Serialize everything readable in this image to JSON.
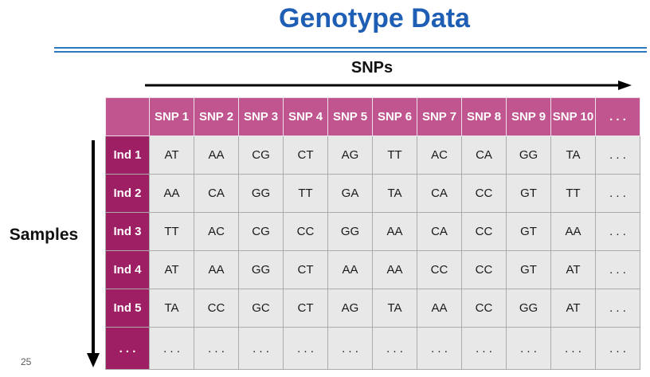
{
  "slide": {
    "title": "Genotype Data",
    "snps_axis_label": "SNPs",
    "samples_axis_label": "Samples",
    "page_number": "25"
  },
  "colors": {
    "title_blue": "#1E5EB4",
    "rule_blue": "#2E79BE",
    "header_pink": "#C0558F",
    "row_header_magenta": "#9E1F63",
    "cell_gray": "#E9E8E9",
    "arrow_black": "#000000"
  },
  "table": {
    "corner_label": "",
    "column_headers": [
      "SNP 1",
      "SNP 2",
      "SNP 3",
      "SNP 4",
      "SNP 5",
      "SNP 6",
      "SNP 7",
      "SNP 8",
      "SNP 9",
      "SNP 10",
      ". . ."
    ],
    "rows": [
      {
        "label": "Ind 1",
        "cells": [
          "AT",
          "AA",
          "CG",
          "CT",
          "AG",
          "TT",
          "AC",
          "CA",
          "GG",
          "TA",
          ". . ."
        ]
      },
      {
        "label": "Ind 2",
        "cells": [
          "AA",
          "CA",
          "GG",
          "TT",
          "GA",
          "TA",
          "CA",
          "CC",
          "GT",
          "TT",
          ". . ."
        ]
      },
      {
        "label": "Ind 3",
        "cells": [
          "TT",
          "AC",
          "CG",
          "CC",
          "GG",
          "AA",
          "CA",
          "CC",
          "GT",
          "AA",
          ". . ."
        ]
      },
      {
        "label": "Ind 4",
        "cells": [
          "AT",
          "AA",
          "GG",
          "CT",
          "AA",
          "AA",
          "CC",
          "CC",
          "GT",
          "AT",
          ". . ."
        ]
      },
      {
        "label": "Ind 5",
        "cells": [
          "TA",
          "CC",
          "GC",
          "CT",
          "AG",
          "TA",
          "AA",
          "CC",
          "GG",
          "AT",
          ". . ."
        ]
      },
      {
        "label": ". . .",
        "cells": [
          ". . .",
          ". . .",
          ". . .",
          ". . .",
          ". . .",
          ". . .",
          ". . .",
          ". . .",
          ". . .",
          ". . .",
          ". . ."
        ]
      }
    ]
  }
}
